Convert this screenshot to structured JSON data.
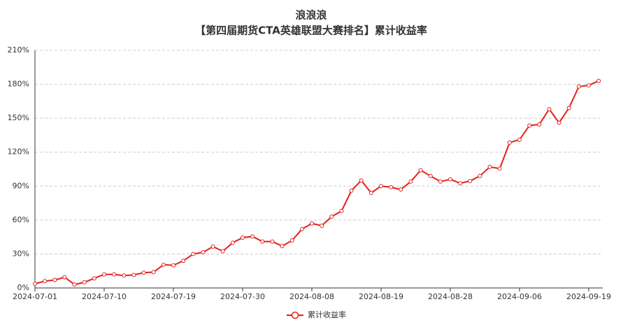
{
  "chart_data": {
    "type": "line",
    "title": "浪浪浪",
    "subtitle": "【第四届期货CTA英雄联盟大赛排名】累计收益率",
    "categories": [
      "2024-07-01",
      null,
      null,
      null,
      null,
      null,
      null,
      "2024-07-10",
      null,
      null,
      null,
      null,
      null,
      null,
      "2024-07-19",
      null,
      null,
      null,
      null,
      null,
      null,
      "2024-07-30",
      null,
      null,
      null,
      null,
      null,
      null,
      "2024-08-08",
      null,
      null,
      null,
      null,
      null,
      null,
      "2024-08-19",
      null,
      null,
      null,
      null,
      null,
      null,
      "2024-08-28",
      null,
      null,
      null,
      null,
      null,
      null,
      "2024-09-06",
      null,
      null,
      null,
      null,
      null,
      null,
      "2024-09-19",
      null
    ],
    "series": [
      {
        "name": "累计收益率",
        "color": "#e3211c",
        "values": [
          3.7,
          6,
          7,
          9.5,
          3,
          5,
          8.5,
          12,
          12,
          11,
          11.5,
          13.5,
          14,
          20.5,
          20,
          24,
          30,
          31.5,
          36.5,
          32.5,
          40,
          44.5,
          45.5,
          41,
          41,
          37,
          42,
          52,
          57,
          55,
          63,
          68,
          86,
          95,
          84,
          90,
          89,
          87,
          94,
          104,
          99,
          94,
          96,
          92.5,
          94.5,
          99,
          107,
          105.5,
          128.5,
          131,
          143.5,
          144.5,
          158,
          146,
          159,
          178,
          179,
          183
        ]
      }
    ],
    "ylim": [
      0,
      210
    ],
    "yticks": [
      {
        "value": 0,
        "label": "0%"
      },
      {
        "value": 30,
        "label": "30%"
      },
      {
        "value": 60,
        "label": "60%"
      },
      {
        "value": 90,
        "label": "90%"
      },
      {
        "value": 120,
        "label": "120%"
      },
      {
        "value": 150,
        "label": "150%"
      },
      {
        "value": 180,
        "label": "180%"
      },
      {
        "value": 210,
        "label": "210%"
      }
    ],
    "grid": true,
    "legend": "bottom"
  }
}
